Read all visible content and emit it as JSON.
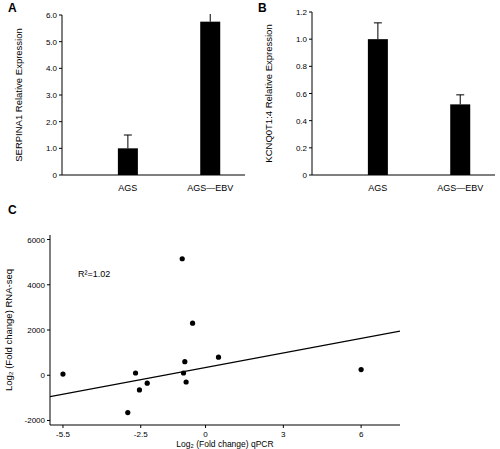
{
  "chart_data": [
    {
      "type": "bar",
      "panel": "A",
      "ylabel": "SERPINA1  Relative  Expression",
      "categories": [
        "AGS",
        "AGS—EBV"
      ],
      "values": [
        1.0,
        5.75
      ],
      "errors": [
        0.5,
        0.4
      ],
      "color": "#000000",
      "ylim": [
        0,
        6
      ],
      "yticks": [
        0,
        {
          "value": 1,
          "label": "1.0"
        },
        {
          "value": 2,
          "label": "2.0"
        },
        {
          "value": 3,
          "label": "3.0"
        },
        {
          "value": 4,
          "label": "4.0"
        },
        {
          "value": 5,
          "label": "5.0"
        },
        {
          "value": 6,
          "label": "6.0"
        }
      ]
    },
    {
      "type": "bar",
      "panel": "B",
      "ylabel": "KCNQ0T1:4  Relative  Expression",
      "categories": [
        "AGS",
        "AGS—EBV"
      ],
      "values": [
        1.0,
        0.52
      ],
      "errors": [
        0.12,
        0.07
      ],
      "color": "#000000",
      "ylim": [
        0,
        1.2
      ],
      "yticks": [
        0,
        0.2,
        0.4,
        0.6,
        0.8,
        {
          "value": 1,
          "label": "1.0"
        },
        1.2
      ]
    },
    {
      "type": "scatter",
      "panel": "C",
      "xlabel": "Log₂ (Fold change) qPCR",
      "ylabel": "Log₂ (Fold change) RNA-seq",
      "annotation": "R²=1.02",
      "x": [
        -5.5,
        -2.7,
        -2.55,
        -2.25,
        -3.0,
        -0.9,
        -0.5,
        -0.8,
        -0.85,
        -0.75,
        0.5,
        6.0
      ],
      "values": [
        50,
        100,
        -650,
        -350,
        -1650,
        5150,
        2300,
        600,
        100,
        -300,
        800,
        250
      ],
      "trendline": {
        "x": [
          -6,
          7.5
        ],
        "values": [
          -950,
          1950
        ]
      },
      "color": "#000000",
      "xlim": [
        -6,
        7.5
      ],
      "ylim": [
        -2200,
        6200
      ],
      "xticks": [
        -5.5,
        -2.5,
        0,
        3,
        6
      ],
      "yticks": [
        -2000,
        0,
        2000,
        4000,
        6000
      ]
    }
  ]
}
